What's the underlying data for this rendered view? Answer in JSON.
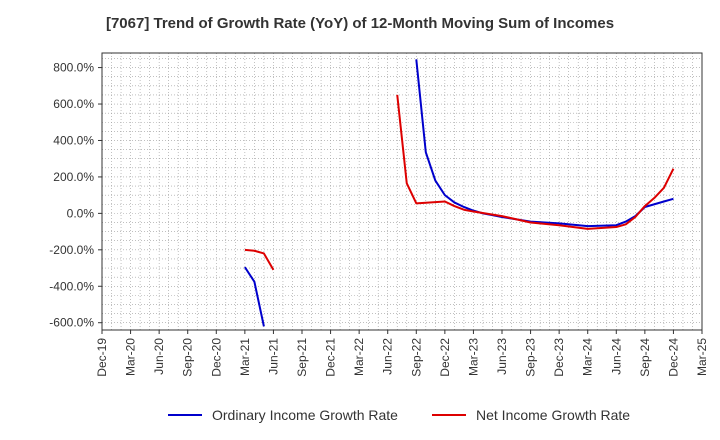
{
  "chart_data": {
    "type": "line",
    "title": "[7067]  Trend of Growth Rate (YoY) of 12-Month Moving Sum of Incomes",
    "xlabel": "",
    "ylabel": "",
    "x_tick_labels": [
      "Dec-19",
      "Mar-20",
      "Jun-20",
      "Sep-20",
      "Dec-20",
      "Mar-21",
      "Jun-21",
      "Sep-21",
      "Dec-21",
      "Mar-22",
      "Jun-22",
      "Sep-22",
      "Dec-22",
      "Mar-23",
      "Jun-23",
      "Sep-23",
      "Dec-23",
      "Mar-24",
      "Jun-24",
      "Sep-24",
      "Dec-24",
      "Mar-25"
    ],
    "y_tick_labels": [
      "800.0%",
      "600.0%",
      "400.0%",
      "200.0%",
      "0.0%",
      "-200.0%",
      "-400.0%",
      "-600.0%"
    ],
    "y_ticks": [
      800,
      600,
      400,
      200,
      0,
      -200,
      -400,
      -600
    ],
    "ylim": [
      -640,
      880
    ],
    "grid": true,
    "legend_position": "bottom",
    "series": [
      {
        "name": "Ordinary Income Growth Rate",
        "color": "#0000cc",
        "points": [
          [
            "2021-03",
            -295
          ],
          [
            "2021-04",
            -375
          ],
          [
            "2021-05",
            -620
          ],
          [
            "2022-09",
            845
          ],
          [
            "2022-10",
            335
          ],
          [
            "2022-11",
            180
          ],
          [
            "2022-12",
            100
          ],
          [
            "2023-01",
            60
          ],
          [
            "2023-02",
            35
          ],
          [
            "2023-03",
            15
          ],
          [
            "2023-04",
            0
          ],
          [
            "2023-05",
            -10
          ],
          [
            "2023-06",
            -20
          ],
          [
            "2023-09",
            -45
          ],
          [
            "2023-12",
            -55
          ],
          [
            "2024-03",
            -70
          ],
          [
            "2024-06",
            -65
          ],
          [
            "2024-07",
            -45
          ],
          [
            "2024-08",
            -15
          ],
          [
            "2024-09",
            35
          ],
          [
            "2024-10",
            50
          ],
          [
            "2024-11",
            65
          ],
          [
            "2024-12",
            80
          ]
        ]
      },
      {
        "name": "Net Income Growth Rate",
        "color": "#dd0000",
        "points": [
          [
            "2021-03",
            -200
          ],
          [
            "2021-04",
            -205
          ],
          [
            "2021-05",
            -220
          ],
          [
            "2021-06",
            -310
          ],
          [
            "2022-07",
            650
          ],
          [
            "2022-08",
            165
          ],
          [
            "2022-09",
            55
          ],
          [
            "2022-12",
            65
          ],
          [
            "2023-01",
            40
          ],
          [
            "2023-02",
            20
          ],
          [
            "2023-03",
            10
          ],
          [
            "2023-06",
            -15
          ],
          [
            "2023-09",
            -50
          ],
          [
            "2023-12",
            -65
          ],
          [
            "2024-03",
            -85
          ],
          [
            "2024-06",
            -75
          ],
          [
            "2024-07",
            -60
          ],
          [
            "2024-08",
            -20
          ],
          [
            "2024-09",
            40
          ],
          [
            "2024-10",
            85
          ],
          [
            "2024-11",
            140
          ],
          [
            "2024-12",
            245
          ]
        ]
      }
    ]
  }
}
